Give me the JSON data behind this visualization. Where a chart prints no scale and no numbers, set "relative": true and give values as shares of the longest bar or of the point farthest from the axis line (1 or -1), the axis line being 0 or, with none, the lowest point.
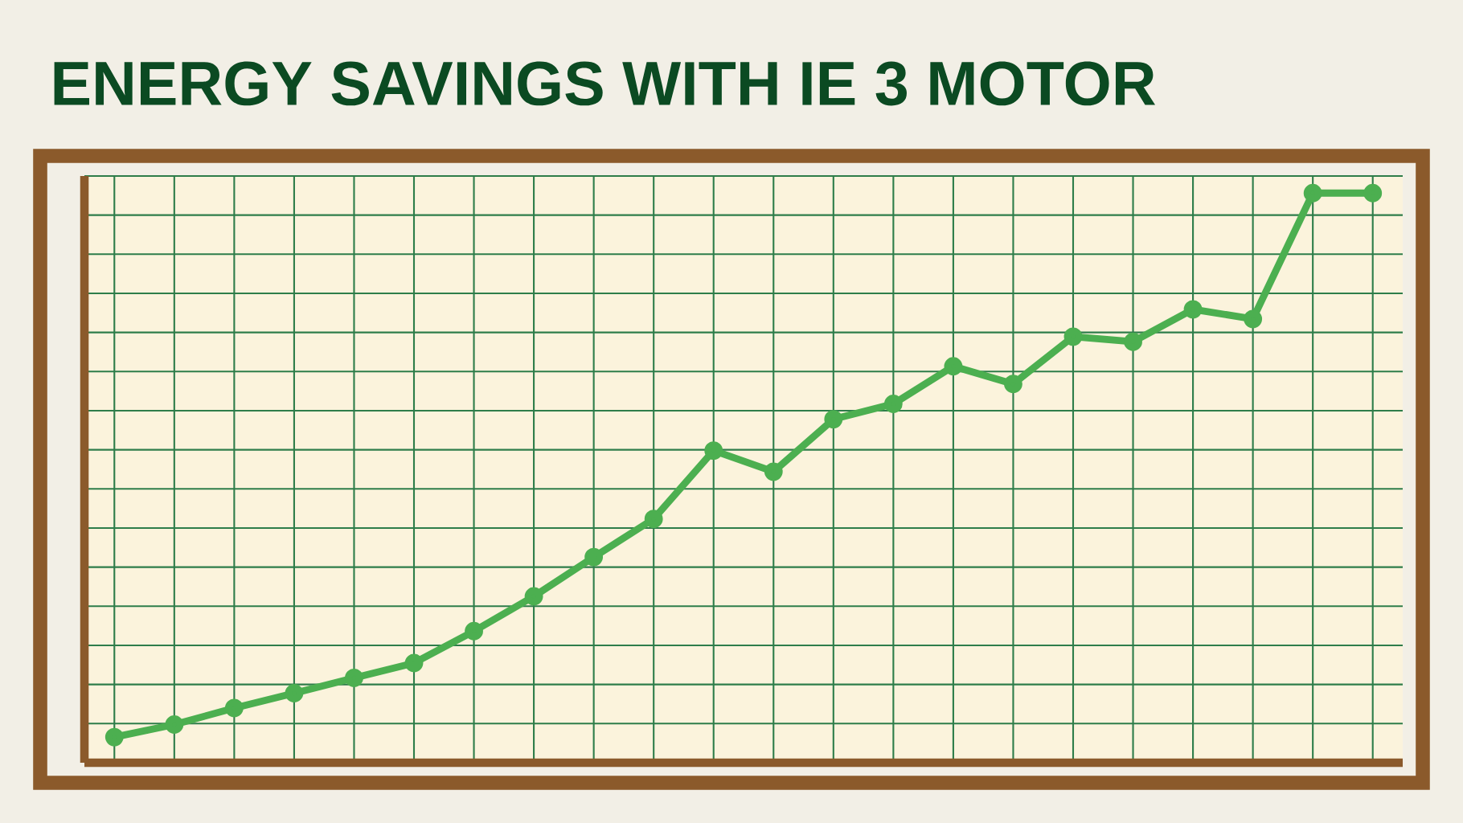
{
  "chart_data": {
    "type": "line",
    "title": "ENERGY SAVINGS WITH IE 3 MOTOR",
    "relative": true,
    "categories": [
      null,
      null,
      null,
      null,
      null,
      null,
      null,
      null,
      null,
      null,
      null,
      null,
      null,
      null,
      null,
      null,
      null,
      null,
      null,
      null,
      null,
      null
    ],
    "series": [
      {
        "color": "#4caf50",
        "values": [
          0.045,
          0.067,
          0.096,
          0.122,
          0.149,
          0.175,
          0.231,
          0.292,
          0.361,
          0.428,
          0.548,
          0.511,
          0.603,
          0.63,
          0.696,
          0.665,
          0.748,
          0.739,
          0.796,
          0.779,
          1,
          1
        ]
      }
    ],
    "grid": true,
    "marker": "circle"
  }
}
